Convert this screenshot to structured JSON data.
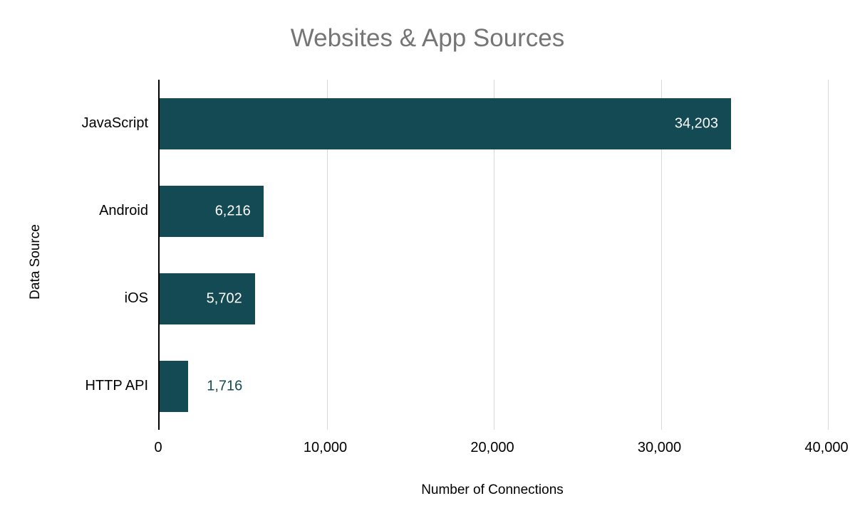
{
  "chart_data": {
    "type": "bar",
    "orientation": "horizontal",
    "title": "Websites & App Sources",
    "xlabel": "Number of Connections",
    "ylabel": "Data Source",
    "categories": [
      "JavaScript",
      "Android",
      "iOS",
      "HTTP API"
    ],
    "values": [
      34203,
      6216,
      5702,
      1716
    ],
    "value_labels": [
      "34,203",
      "6,216",
      "5,702",
      "1,716"
    ],
    "label_inside": [
      true,
      true,
      true,
      false
    ],
    "xlim": [
      0,
      40000
    ],
    "xticks": [
      0,
      10000,
      20000,
      30000,
      40000
    ],
    "xtick_labels": [
      "0",
      "10,000",
      "20,000",
      "30,000",
      "40,000"
    ],
    "grid": true,
    "legend": "none",
    "colors": {
      "bar": "#134a53",
      "title": "#757575",
      "axis_line": "#000000",
      "gridline": "#d9d9d9",
      "label_inside": "#ffffff",
      "label_outside": "#134a53",
      "text": "#000000"
    }
  }
}
